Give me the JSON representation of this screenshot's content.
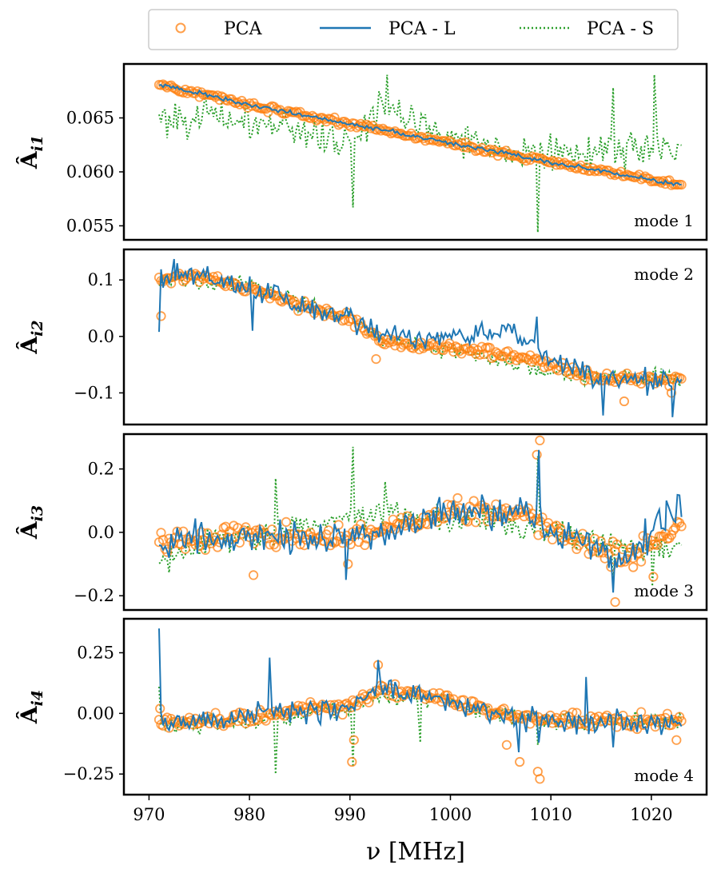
{
  "chart_data": {
    "type": "line",
    "x_axis": {
      "label": "ν [MHz]",
      "range": [
        967.5,
        1025.5
      ],
      "ticks": [
        970,
        980,
        990,
        1000,
        1010,
        1020
      ],
      "tick_labels": [
        "970",
        "980",
        "990",
        "1000",
        "1010",
        "1020"
      ]
    },
    "legend": {
      "placement": "top",
      "entries": [
        {
          "label": "PCA",
          "style": "open-circle",
          "color": "#ff7f0e"
        },
        {
          "label": "PCA - L",
          "style": "solid",
          "color": "#1f77b4"
        },
        {
          "label": "PCA - S",
          "style": "dotted",
          "color": "#2ca02c"
        }
      ]
    },
    "panels": [
      {
        "mode_label": "mode 1",
        "mode_label_pos": "bottom-right",
        "ylabel": "Â",
        "ylabel_sub": "i1",
        "ylim": [
          0.0537,
          0.07
        ],
        "ticks": [
          0.055,
          0.06,
          0.065
        ],
        "tick_labels": [
          "0.055",
          "0.060",
          "0.065"
        ],
        "series": {
          "PCA": {
            "trend": [
              [
                971,
                0.0681
              ],
              [
                981,
                0.066
              ],
              [
                991,
                0.0643
              ],
              [
                1001,
                0.0625
              ],
              [
                1011,
                0.0607
              ],
              [
                1023,
                0.0588
              ]
            ],
            "noise": 0.0002,
            "outliers": []
          },
          "PCA-L": {
            "trend": [
              [
                971,
                0.0681
              ],
              [
                981,
                0.066
              ],
              [
                991,
                0.0643
              ],
              [
                1001,
                0.0625
              ],
              [
                1011,
                0.0607
              ],
              [
                1023,
                0.0588
              ]
            ],
            "noise": 0.00015,
            "spikes": []
          },
          "PCA-S": {
            "trend": [
              [
                971,
                0.065
              ],
              [
                975,
                0.0652
              ],
              [
                985,
                0.064
              ],
              [
                990,
                0.0625
              ],
              [
                993,
                0.066
              ],
              [
                1001,
                0.063
              ],
              [
                1010,
                0.0615
              ],
              [
                1023,
                0.0625
              ]
            ],
            "noise": 0.0012,
            "spikes": [
              [
                990.3,
                0.0567
              ],
              [
                993.7,
                0.069
              ],
              [
                1008.7,
                0.0544
              ],
              [
                1016.2,
                0.0678
              ],
              [
                1020.3,
                0.069
              ]
            ]
          }
        }
      },
      {
        "mode_label": "mode 2",
        "mode_label_pos": "top-right",
        "ylabel": "Â",
        "ylabel_sub": "i2",
        "ylim": [
          -0.156,
          0.154
        ],
        "ticks": [
          -0.1,
          0.0,
          0.1
        ],
        "tick_labels": [
          "−0.1",
          "0.0",
          "0.1"
        ],
        "series": {
          "PCA": {
            "trend": [
              [
                971.5,
                0.1
              ],
              [
                975,
                0.105
              ],
              [
                980,
                0.085
              ],
              [
                986,
                0.05
              ],
              [
                990,
                0.03
              ],
              [
                993,
                -0.01
              ],
              [
                1000,
                -0.02
              ],
              [
                1008,
                -0.04
              ],
              [
                1015,
                -0.075
              ],
              [
                1023,
                -0.075
              ]
            ],
            "noise": 0.007,
            "outliers": [
              [
                971.2,
                0.036
              ],
              [
                992.6,
                -0.04
              ],
              [
                1017.3,
                -0.115
              ],
              [
                1022,
                -0.1
              ]
            ]
          },
          "PCA-L": {
            "trend": [
              [
                971.5,
                0.1
              ],
              [
                975,
                0.105
              ],
              [
                980,
                0.085
              ],
              [
                986,
                0.05
              ],
              [
                990,
                0.03
              ],
              [
                993,
                0.0
              ],
              [
                1000,
                0.0
              ],
              [
                1006,
                0.01
              ],
              [
                1010,
                -0.04
              ],
              [
                1015,
                -0.08
              ],
              [
                1023,
                -0.08
              ]
            ],
            "noise": 0.015,
            "spikes": [
              [
                971,
                0.008
              ],
              [
                972.5,
                0.137
              ],
              [
                980.3,
                0.01
              ],
              [
                1015.2,
                -0.14
              ],
              [
                1022.1,
                -0.143
              ],
              [
                1008.6,
                0.035
              ]
            ]
          },
          "PCA-S": {
            "trend": [
              [
                971.5,
                0.095
              ],
              [
                975,
                0.1
              ],
              [
                980,
                0.09
              ],
              [
                986,
                0.055
              ],
              [
                990,
                0.035
              ],
              [
                993,
                -0.005
              ],
              [
                1000,
                -0.025
              ],
              [
                1008,
                -0.055
              ],
              [
                1015,
                -0.075
              ],
              [
                1023,
                -0.07
              ]
            ],
            "noise": 0.01,
            "spikes": []
          }
        }
      },
      {
        "mode_label": "mode 3",
        "mode_label_pos": "bottom-right",
        "ylabel": "Â",
        "ylabel_sub": "i3",
        "ylim": [
          -0.245,
          0.31
        ],
        "ticks": [
          -0.2,
          0.0,
          0.2
        ],
        "tick_labels": [
          "−0.2",
          "0.0",
          "0.2"
        ],
        "series": {
          "PCA": {
            "trend": [
              [
                971,
                -0.03
              ],
              [
                980,
                -0.01
              ],
              [
                990,
                -0.02
              ],
              [
                1000,
                0.06
              ],
              [
                1007,
                0.07
              ],
              [
                1012,
                -0.02
              ],
              [
                1017,
                -0.08
              ],
              [
                1023,
                0.02
              ]
            ],
            "noise": 0.025,
            "outliers": [
              [
                980.4,
                -0.135
              ],
              [
                989.8,
                -0.1
              ],
              [
                1008.6,
                0.245
              ],
              [
                1008.9,
                0.29
              ],
              [
                1016.4,
                -0.22
              ],
              [
                1020.2,
                -0.14
              ],
              [
                1018.2,
                -0.11
              ]
            ]
          },
          "PCA-L": {
            "trend": [
              [
                971,
                -0.03
              ],
              [
                980,
                -0.01
              ],
              [
                990,
                -0.02
              ],
              [
                1000,
                0.06
              ],
              [
                1007,
                0.07
              ],
              [
                1012,
                -0.02
              ],
              [
                1017,
                -0.09
              ],
              [
                1023,
                0.08
              ]
            ],
            "noise": 0.035,
            "spikes": [
              [
                1008.8,
                0.26
              ],
              [
                989.6,
                -0.15
              ],
              [
                1016.2,
                -0.19
              ],
              [
                1021.5,
                0.1
              ]
            ]
          },
          "PCA-S": {
            "trend": [
              [
                971,
                -0.1
              ],
              [
                975,
                -0.04
              ],
              [
                982,
                0.0
              ],
              [
                990,
                0.05
              ],
              [
                995,
                0.06
              ],
              [
                1000,
                0.04
              ],
              [
                1008,
                0.02
              ],
              [
                1015,
                -0.05
              ],
              [
                1023,
                -0.05
              ]
            ],
            "noise": 0.03,
            "spikes": [
              [
                982.6,
                0.17
              ],
              [
                990.3,
                0.27
              ],
              [
                993.5,
                0.16
              ],
              [
                1008.7,
                0.24
              ],
              [
                1016.2,
                -0.18
              ],
              [
                1020.1,
                -0.17
              ]
            ]
          }
        }
      },
      {
        "mode_label": "mode 4",
        "mode_label_pos": "bottom-right",
        "ylabel": "Â",
        "ylabel_sub": "i4",
        "ylim": [
          -0.335,
          0.39
        ],
        "ticks": [
          -0.25,
          0.0,
          0.25
        ],
        "tick_labels": [
          "−0.25",
          "0.00",
          "0.25"
        ],
        "series": {
          "PCA": {
            "trend": [
              [
                971,
                -0.04
              ],
              [
                980,
                -0.02
              ],
              [
                986,
                0.02
              ],
              [
                990,
                0.03
              ],
              [
                993,
                0.1
              ],
              [
                1000,
                0.06
              ],
              [
                1005,
                0.0
              ],
              [
                1010,
                -0.03
              ],
              [
                1023,
                -0.03
              ]
            ],
            "noise": 0.02,
            "outliers": [
              [
                990.2,
                -0.2
              ],
              [
                990.4,
                -0.11
              ],
              [
                992.8,
                0.2
              ],
              [
                1006.9,
                -0.2
              ],
              [
                1008.7,
                -0.24
              ],
              [
                1008.9,
                -0.27
              ],
              [
                1005.6,
                -0.13
              ],
              [
                1022.5,
                -0.11
              ],
              [
                971.1,
                0.02
              ]
            ]
          },
          "PCA-L": {
            "trend": [
              [
                971,
                -0.03
              ],
              [
                980,
                -0.02
              ],
              [
                986,
                0.01
              ],
              [
                990,
                0.03
              ],
              [
                993,
                0.12
              ],
              [
                1000,
                0.05
              ],
              [
                1005,
                0.0
              ],
              [
                1010,
                -0.03
              ],
              [
                1023,
                -0.03
              ]
            ],
            "noise": 0.035,
            "spikes": [
              [
                971,
                0.35
              ],
              [
                982,
                0.23
              ],
              [
                992.8,
                0.22
              ],
              [
                1006.8,
                -0.16
              ],
              [
                1008.8,
                -0.12
              ],
              [
                1013.5,
                0.15
              ],
              [
                1016.2,
                -0.14
              ]
            ]
          },
          "PCA-S": {
            "trend": [
              [
                971,
                -0.05
              ],
              [
                980,
                -0.03
              ],
              [
                986,
                0.0
              ],
              [
                990,
                0.03
              ],
              [
                993,
                0.08
              ],
              [
                1000,
                0.05
              ],
              [
                1005,
                0.0
              ],
              [
                1010,
                -0.03
              ],
              [
                1023,
                -0.03
              ]
            ],
            "noise": 0.025,
            "spikes": [
              [
                982.6,
                -0.25
              ],
              [
                990.3,
                -0.22
              ],
              [
                997,
                -0.12
              ],
              [
                1008.7,
                -0.13
              ],
              [
                971,
                0.11
              ]
            ]
          }
        }
      }
    ]
  }
}
